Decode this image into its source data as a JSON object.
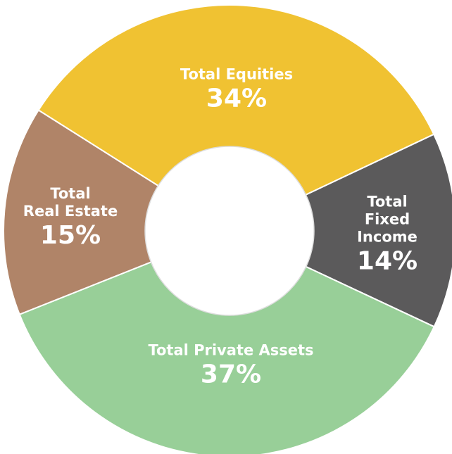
{
  "chart_data": {
    "type": "donut",
    "categories": [
      "Total Equities",
      "Total Fixed\nIncome",
      "Total Private Assets",
      "Total\nReal Estate"
    ],
    "values": [
      34,
      14,
      37,
      15
    ],
    "value_labels": [
      "34%",
      "14%",
      "37%",
      "15%"
    ],
    "colors": [
      "#f0c232",
      "#5b5a5b",
      "#98cf98",
      "#b08468"
    ]
  }
}
